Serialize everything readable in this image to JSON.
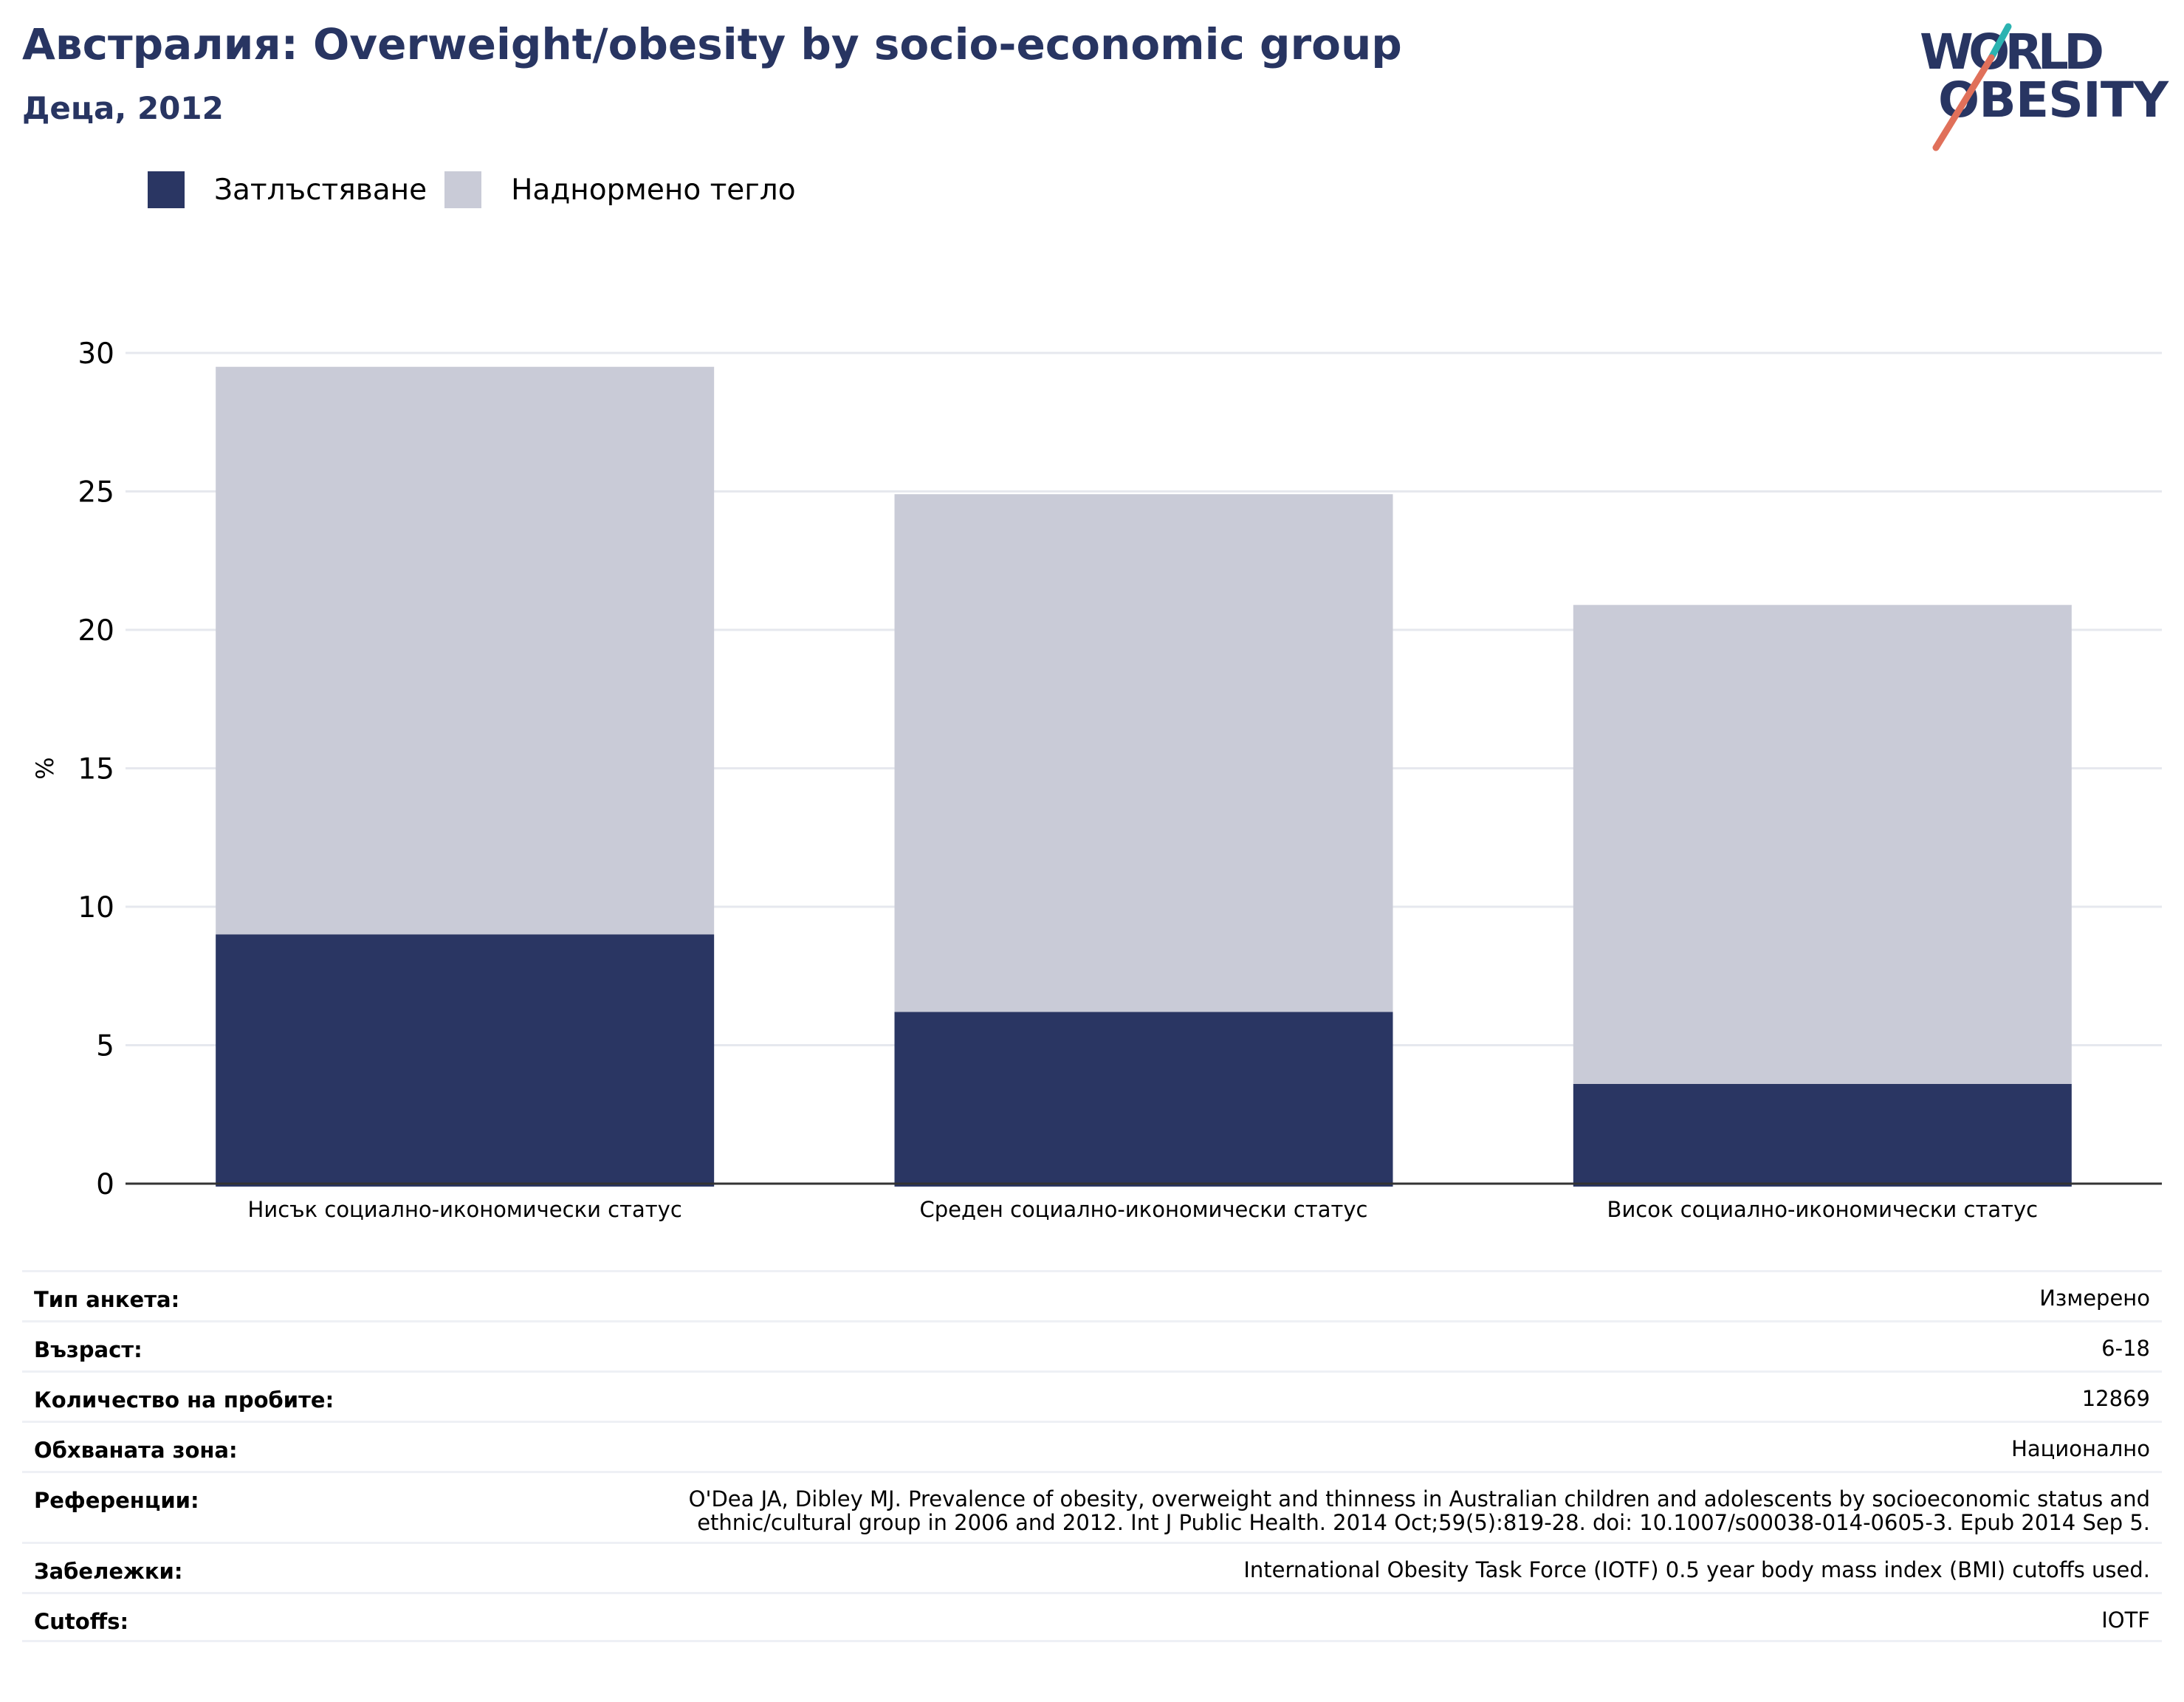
{
  "header": {
    "title": "Австралия: Overweight/obesity by socio-economic group",
    "subtitle": "Деца, 2012"
  },
  "logo": {
    "line1": "WORLD",
    "line2": "OBESITY",
    "icon": "world-obesity-logo"
  },
  "legend": [
    {
      "label": "Затлъстяване",
      "color": "#2a3663"
    },
    {
      "label": "Наднормено тегло",
      "color": "#c9cbd7"
    }
  ],
  "chart_data": {
    "type": "bar",
    "stacked": true,
    "categories": [
      "Нисък социално-икономически статус",
      "Среден социално-икономически статус",
      "Висок социално-икономически статус"
    ],
    "series": [
      {
        "name": "Затлъстяване",
        "values": [
          9.0,
          6.2,
          3.6
        ],
        "color": "#2a3663"
      },
      {
        "name": "Наднормено тегло",
        "values": [
          20.5,
          18.7,
          17.3
        ],
        "color": "#c9cbd7"
      }
    ],
    "ylabel": "%",
    "xlabel": "",
    "ylim": [
      0,
      30
    ],
    "yticks": [
      0,
      5,
      10,
      15,
      20,
      25,
      30
    ],
    "grid": true,
    "legend_position": "top-left"
  },
  "meta": [
    {
      "label": "Тип анкета:",
      "value": "Измерено"
    },
    {
      "label": "Възраст:",
      "value": "6-18"
    },
    {
      "label": "Количество на пробите:",
      "value": "12869"
    },
    {
      "label": "Обхваната зона:",
      "value": "Национално"
    },
    {
      "label": "Референции:",
      "value": "O'Dea JA, Dibley MJ. Prevalence of obesity, overweight and thinness in Australian children and adolescents by socioeconomic status and ethnic/cultural group in 2006 and 2012. Int J Public Health. 2014 Oct;59(5):819-28. doi: 10.1007/s00038-014-0605-3. Epub 2014 Sep 5."
    },
    {
      "label": "Забележки:",
      "value": "International Obesity Task Force (IOTF) 0.5 year body mass index (BMI) cutoffs used."
    },
    {
      "label": "Cutoffs:",
      "value": "IOTF"
    }
  ]
}
